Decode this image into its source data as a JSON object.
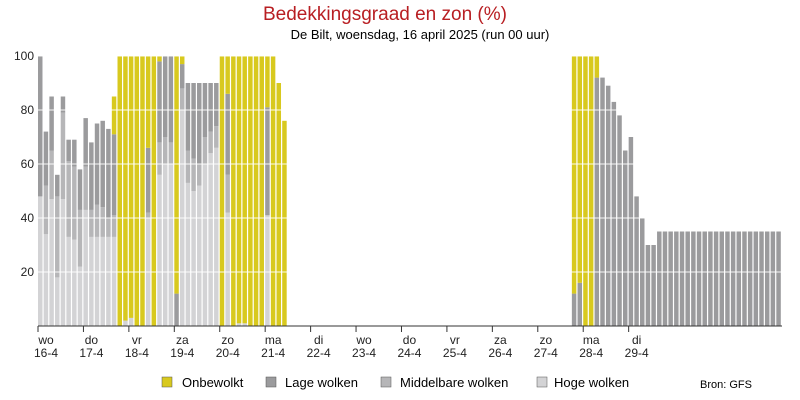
{
  "chart_data": {
    "type": "bar",
    "stacked": true,
    "title": "Bedekkingsgraad en zon (%)",
    "subtitle": "De Bilt, woensdag, 16 april 2025 (run 00 uur)",
    "ylim": [
      0,
      100
    ],
    "yticks": [
      20,
      40,
      60,
      80,
      100
    ],
    "grid": true,
    "source": "Bron: GFS",
    "legend_location": "bottom",
    "colors": {
      "onbewolkt": "#d8c91e",
      "lage": "#9b9b9d",
      "middel": "#b6b6b8",
      "hoge": "#d3d3d5",
      "grid": "#ffffff"
    },
    "x_labels": [
      {
        "day": "wo",
        "date": "16-4",
        "index": 0
      },
      {
        "day": "do",
        "date": "17-4",
        "index": 8
      },
      {
        "day": "vr",
        "date": "18-4",
        "index": 16
      },
      {
        "day": "za",
        "date": "19-4",
        "index": 24
      },
      {
        "day": "zo",
        "date": "20-4",
        "index": 32
      },
      {
        "day": "ma",
        "date": "21-4",
        "index": 40
      },
      {
        "day": "di",
        "date": "22-4",
        "index": 48
      },
      {
        "day": "wo",
        "date": "23-4",
        "index": 56
      },
      {
        "day": "do",
        "date": "24-4",
        "index": 64
      },
      {
        "day": "vr",
        "date": "25-4",
        "index": 72
      },
      {
        "day": "za",
        "date": "26-4",
        "index": 80
      },
      {
        "day": "zo",
        "date": "27-4",
        "index": 88
      },
      {
        "day": "ma",
        "date": "28-4",
        "index": 96
      },
      {
        "day": "di",
        "date": "29-4",
        "index": 104
      }
    ],
    "series": [
      {
        "key": "onbewolkt",
        "name": "Onbewolkt"
      },
      {
        "key": "lage",
        "name": "Lage wolken"
      },
      {
        "key": "middel",
        "name": "Middelbare wolken"
      },
      {
        "key": "hoge",
        "name": "Hoge wolken"
      }
    ],
    "onbewolkt": [
      0,
      0,
      0,
      0,
      0,
      0,
      0,
      0,
      0,
      0,
      0,
      0,
      0,
      14,
      100,
      98,
      97,
      100,
      100,
      34,
      100,
      2,
      0,
      0,
      88,
      3,
      0,
      0,
      0,
      0,
      0,
      0,
      100,
      14,
      100,
      99,
      99,
      100,
      100,
      100,
      19,
      100,
      90,
      76,
      0,
      0,
      0,
      0,
      0,
      0,
      0,
      0,
      0,
      0,
      0,
      0,
      0,
      0,
      0,
      0,
      0,
      0,
      0,
      0,
      0,
      0,
      0,
      0,
      0,
      0,
      0,
      0,
      0,
      0,
      0,
      0,
      0,
      0,
      0,
      0,
      0,
      0,
      0,
      0,
      0,
      0,
      0,
      0,
      0,
      0,
      0,
      0,
      0,
      0,
      88,
      84,
      100,
      100,
      8,
      0,
      0,
      0,
      0,
      0,
      0,
      0,
      0,
      0,
      0,
      0,
      0,
      0,
      0,
      0,
      0,
      0,
      0,
      0,
      0,
      0,
      0,
      0,
      0,
      0,
      0,
      0,
      0,
      0,
      0,
      0,
      0
    ],
    "lage": [
      52,
      20,
      20,
      8,
      6,
      8,
      10,
      15,
      18,
      25,
      30,
      32,
      33,
      30,
      0,
      0,
      0,
      0,
      0,
      24,
      0,
      30,
      30,
      32,
      12,
      9,
      25,
      28,
      30,
      20,
      18,
      16,
      0,
      30,
      0,
      0,
      0,
      0,
      0,
      0,
      40,
      0,
      0,
      0,
      0,
      0,
      0,
      0,
      0,
      0,
      0,
      0,
      0,
      0,
      0,
      0,
      0,
      0,
      0,
      0,
      0,
      0,
      0,
      0,
      0,
      0,
      0,
      0,
      0,
      0,
      0,
      0,
      0,
      0,
      0,
      0,
      0,
      0,
      0,
      0,
      0,
      0,
      0,
      0,
      0,
      0,
      0,
      0,
      0,
      0,
      0,
      0,
      0,
      0,
      12,
      16,
      0,
      0,
      92,
      92,
      89,
      83,
      78,
      65,
      70,
      48,
      40,
      30,
      30,
      35,
      35,
      35,
      35,
      35,
      35,
      35,
      35,
      35,
      35,
      35,
      35,
      35,
      35,
      35,
      35,
      35,
      35,
      35,
      35,
      35,
      35
    ],
    "middel": [
      0,
      18,
      18,
      30,
      32,
      28,
      27,
      21,
      16,
      10,
      12,
      11,
      7,
      8,
      0,
      0,
      0,
      0,
      0,
      2,
      0,
      12,
      10,
      8,
      0,
      8,
      12,
      12,
      8,
      10,
      8,
      8,
      0,
      14,
      0,
      0,
      0,
      0,
      0,
      0,
      0,
      0,
      0,
      0,
      0,
      0,
      0,
      0,
      0,
      0,
      0,
      0,
      0,
      0,
      0,
      0,
      0,
      0,
      0,
      0,
      0,
      0,
      0,
      0,
      0,
      0,
      0,
      0,
      0,
      0,
      0,
      0,
      0,
      0,
      0,
      0,
      0,
      0,
      0,
      0,
      0,
      0,
      0,
      0,
      0,
      0,
      0,
      0,
      0,
      0,
      0,
      0,
      0,
      0,
      0,
      0,
      0,
      0,
      0,
      0,
      0,
      0,
      0,
      0,
      0,
      0,
      0,
      0,
      0,
      0,
      0,
      0,
      0,
      0,
      0,
      0,
      0,
      0,
      0,
      0,
      0,
      0,
      0,
      0,
      0,
      0,
      0,
      0,
      0,
      0,
      0
    ],
    "hoge": [
      48,
      34,
      47,
      18,
      47,
      33,
      32,
      22,
      43,
      33,
      33,
      33,
      33,
      33,
      0,
      2,
      3,
      0,
      0,
      40,
      0,
      56,
      60,
      60,
      0,
      80,
      53,
      50,
      52,
      60,
      64,
      66,
      0,
      42,
      0,
      1,
      1,
      0,
      0,
      0,
      41,
      0,
      0,
      0,
      0,
      0,
      0,
      0,
      0,
      0,
      0,
      0,
      0,
      0,
      0,
      0,
      0,
      0,
      0,
      0,
      0,
      0,
      0,
      0,
      0,
      0,
      0,
      0,
      0,
      0,
      0,
      0,
      0,
      0,
      0,
      0,
      0,
      0,
      0,
      0,
      0,
      0,
      0,
      0,
      0,
      0,
      0,
      0,
      0,
      0,
      0,
      0,
      0,
      0,
      0,
      0,
      0,
      0,
      0,
      0,
      0,
      0,
      0,
      0,
      0,
      0,
      0,
      0,
      0,
      0,
      0,
      0,
      0,
      0,
      0,
      0,
      0,
      0,
      0,
      0,
      0,
      0,
      0,
      0,
      0,
      0,
      0,
      0,
      0,
      0,
      0
    ]
  }
}
